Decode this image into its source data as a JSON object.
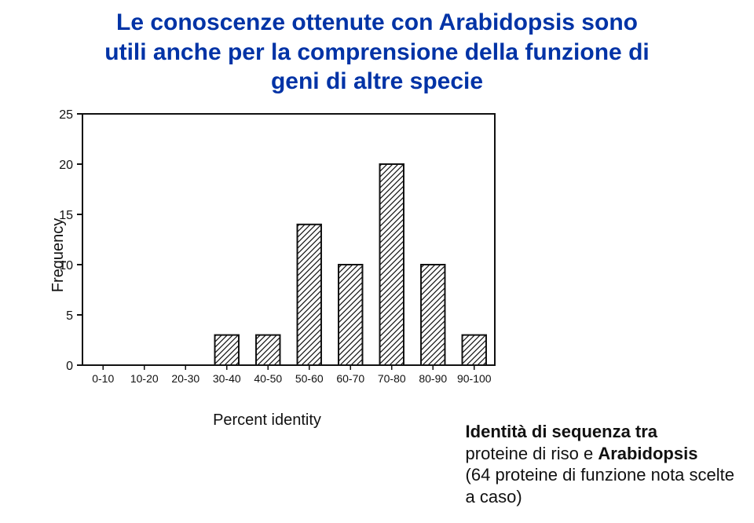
{
  "title": {
    "line1": "Le conoscenze ottenute con Arabidopsis sono",
    "line2": "utili anche per la comprensione della funzione di",
    "line3": "geni di altre specie"
  },
  "chart": {
    "type": "bar",
    "categories": [
      "0-10",
      "10-20",
      "20-30",
      "30-40",
      "40-50",
      "50-60",
      "60-70",
      "70-80",
      "80-90",
      "90-100"
    ],
    "values": [
      0,
      0,
      0,
      3,
      3,
      14,
      10,
      20,
      10,
      3
    ],
    "ylim": [
      0,
      25
    ],
    "yticks": [
      0,
      5,
      10,
      15,
      20,
      25
    ],
    "y_label": "Frequency",
    "x_label": "Percent identity",
    "bar_fill": "hatch-diagonal",
    "bar_stroke": "#111111",
    "axis_color": "#111111",
    "bar_width_rel": 0.58,
    "tick_fontsize": 16,
    "label_fontsize": 20,
    "background_color": "#ffffff"
  },
  "caption": {
    "line1": "Identità di sequenza tra",
    "line2a": "proteine di riso e ",
    "line2b": "Arabidopsis",
    "line3": "(64 proteine di funzione nota scelte",
    "line4": "a caso)"
  }
}
